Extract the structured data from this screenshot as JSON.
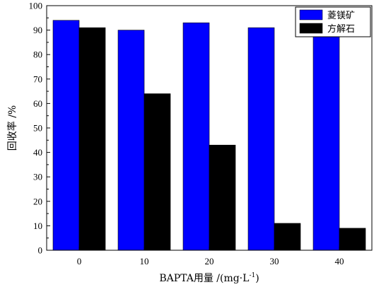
{
  "chart_data": {
    "type": "bar",
    "categories": [
      "0",
      "10",
      "20",
      "30",
      "40"
    ],
    "series": [
      {
        "name": "菱镁矿",
        "color": "#0000ff",
        "values": [
          94,
          90,
          93,
          91,
          91
        ]
      },
      {
        "name": "方解石",
        "color": "#000000",
        "values": [
          91,
          64,
          43,
          11,
          9
        ]
      }
    ],
    "ylim": [
      0,
      100
    ],
    "yticks": [
      0,
      10,
      20,
      30,
      40,
      50,
      60,
      70,
      80,
      90,
      100
    ],
    "ylabel": "回收率 /%",
    "xlabel": "BAPTA用量 /(mg·L",
    "xlabel_sup": "-1",
    "xlabel_end": ")",
    "legend_position": "top-right",
    "grid": false
  }
}
